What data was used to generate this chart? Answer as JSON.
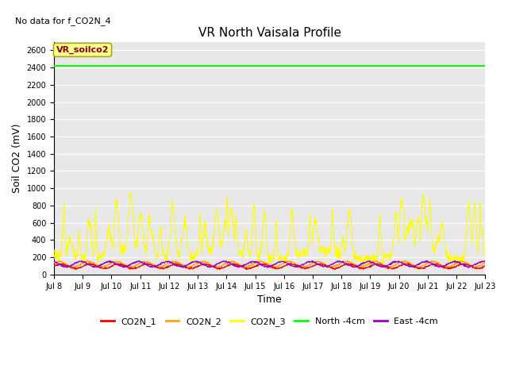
{
  "title": "VR North Vaisala Profile",
  "no_data_text": "No data for f_CO2N_4",
  "ylabel": "Soil CO2 (mV)",
  "xlabel": "Time",
  "annotation_text": "VR_soilco2",
  "annotation_color": "#8B0000",
  "annotation_bg": "#FFFF99",
  "annotation_border": "#AAAA00",
  "xlim_start": 8,
  "xlim_end": 23,
  "ylim_bottom": 0,
  "ylim_top": 2700,
  "yticks": [
    0,
    200,
    400,
    600,
    800,
    1000,
    1200,
    1400,
    1600,
    1800,
    2000,
    2200,
    2400,
    2600
  ],
  "xtick_labels": [
    "Jul 8",
    "Jul 9",
    "Jul 10",
    "Jul 11",
    "Jul 12",
    "Jul 13",
    "Jul 14",
    "Jul 15",
    "Jul 16",
    "Jul 17",
    "Jul 18",
    "Jul 19",
    "Jul 20",
    "Jul 21",
    "Jul 22",
    "Jul 23"
  ],
  "xtick_positions": [
    8,
    9,
    10,
    11,
    12,
    13,
    14,
    15,
    16,
    17,
    18,
    19,
    20,
    21,
    22,
    23
  ],
  "north_4cm_value": 2420,
  "north_4cm_color": "#00FF00",
  "co2n1_color": "#FF0000",
  "co2n2_color": "#FFA500",
  "co2n3_color": "#FFFF00",
  "east_4cm_color": "#9900CC",
  "background_color": "#E8E8E8",
  "grid_color": "#FFFFFF",
  "fig_bg_color": "#FFFFFF",
  "title_fontsize": 11,
  "label_fontsize": 9,
  "tick_fontsize": 7,
  "legend_fontsize": 8
}
